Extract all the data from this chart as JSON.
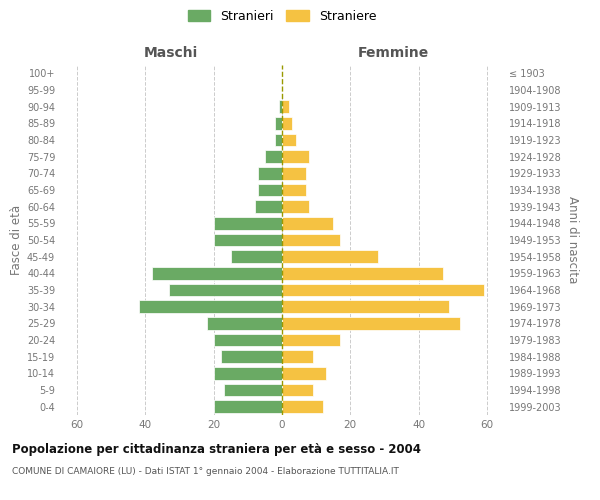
{
  "age_groups": [
    "0-4",
    "5-9",
    "10-14",
    "15-19",
    "20-24",
    "25-29",
    "30-34",
    "35-39",
    "40-44",
    "45-49",
    "50-54",
    "55-59",
    "60-64",
    "65-69",
    "70-74",
    "75-79",
    "80-84",
    "85-89",
    "90-94",
    "95-99",
    "100+"
  ],
  "birth_years": [
    "1999-2003",
    "1994-1998",
    "1989-1993",
    "1984-1988",
    "1979-1983",
    "1974-1978",
    "1969-1973",
    "1964-1968",
    "1959-1963",
    "1954-1958",
    "1949-1953",
    "1944-1948",
    "1939-1943",
    "1934-1938",
    "1929-1933",
    "1924-1928",
    "1919-1923",
    "1914-1918",
    "1909-1913",
    "1904-1908",
    "≤ 1903"
  ],
  "stranieri": [
    20,
    17,
    20,
    18,
    20,
    22,
    42,
    33,
    38,
    15,
    20,
    20,
    8,
    7,
    7,
    5,
    2,
    2,
    1,
    0,
    0
  ],
  "straniere": [
    12,
    9,
    13,
    9,
    17,
    52,
    49,
    59,
    47,
    28,
    17,
    15,
    8,
    7,
    7,
    8,
    4,
    3,
    2,
    0,
    0
  ],
  "male_color": "#6aaa64",
  "female_color": "#f5c242",
  "bar_edge_color": "#ffffff",
  "background_color": "#ffffff",
  "grid_color": "#cccccc",
  "xlim": 65,
  "title": "Popolazione per cittadinanza straniera per età e sesso - 2004",
  "subtitle": "COMUNE DI CAMAIORE (LU) - Dati ISTAT 1° gennaio 2004 - Elaborazione TUTTITALIA.IT",
  "ylabel_left": "Fasce di età",
  "ylabel_right": "Anni di nascita",
  "xlabel_left": "Maschi",
  "xlabel_right": "Femmine",
  "legend_stranieri": "Stranieri",
  "legend_straniere": "Straniere"
}
